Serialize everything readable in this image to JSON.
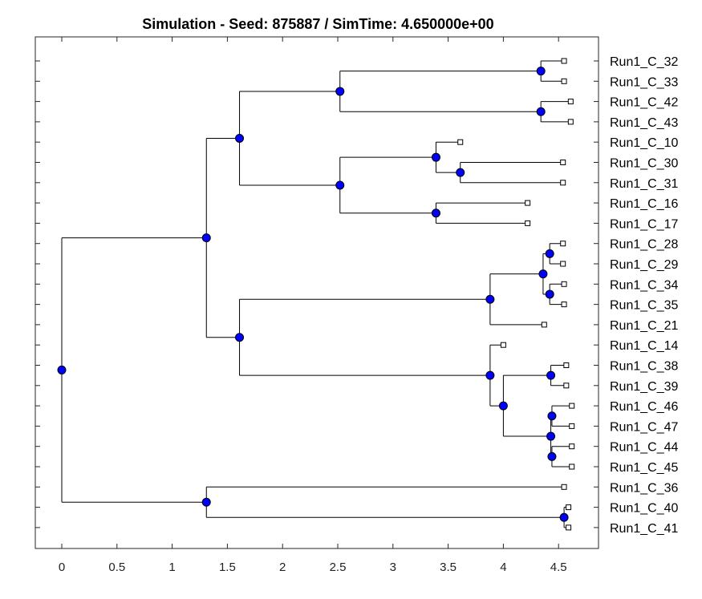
{
  "title": "Simulation - Seed: 875887 / SimTime: 4.650000e+00",
  "colors": {
    "internal_node": "#0000ff",
    "leaf_marker": "#ffffff",
    "edge": "#000000"
  },
  "x_axis": {
    "range": [
      -0.25,
      4.95
    ],
    "ticks": [
      0,
      0.5,
      1,
      1.5,
      2,
      2.5,
      3,
      3.5,
      4,
      4.5
    ],
    "tick_labels": [
      "0",
      "0.5",
      "1",
      "1.5",
      "2",
      "2.5",
      "3",
      "3.5",
      "4",
      "4.5"
    ]
  },
  "chart_data": {
    "type": "dendrogram",
    "title": "Simulation - Seed: 875887 / SimTime: 4.650000e+00",
    "leaf_order": [
      "Run1_C_32",
      "Run1_C_33",
      "Run1_C_42",
      "Run1_C_43",
      "Run1_C_10",
      "Run1_C_30",
      "Run1_C_31",
      "Run1_C_16",
      "Run1_C_17",
      "Run1_C_28",
      "Run1_C_29",
      "Run1_C_34",
      "Run1_C_35",
      "Run1_C_21",
      "Run1_C_14",
      "Run1_C_38",
      "Run1_C_39",
      "Run1_C_46",
      "Run1_C_47",
      "Run1_C_44",
      "Run1_C_45",
      "Run1_C_36",
      "Run1_C_40",
      "Run1_C_41"
    ],
    "tree": {
      "x": 0,
      "children": [
        {
          "x": 1.31,
          "children": [
            {
              "x": 1.61,
              "children": [
                {
                  "x": 2.52,
                  "children": [
                    {
                      "x": 4.34,
                      "children": [
                        {
                          "name": "Run1_C_32",
                          "x": 4.55
                        },
                        {
                          "name": "Run1_C_33",
                          "x": 4.55
                        }
                      ]
                    },
                    {
                      "x": 4.34,
                      "children": [
                        {
                          "name": "Run1_C_42",
                          "x": 4.61
                        },
                        {
                          "name": "Run1_C_43",
                          "x": 4.61
                        }
                      ]
                    }
                  ]
                },
                {
                  "x": 2.52,
                  "children": [
                    {
                      "x": 3.39,
                      "children": [
                        {
                          "name": "Run1_C_10",
                          "x": 3.61
                        },
                        {
                          "x": 3.61,
                          "children": [
                            {
                              "name": "Run1_C_30",
                              "x": 4.54
                            },
                            {
                              "name": "Run1_C_31",
                              "x": 4.54
                            }
                          ]
                        }
                      ]
                    },
                    {
                      "x": 3.39,
                      "children": [
                        {
                          "name": "Run1_C_16",
                          "x": 4.22
                        },
                        {
                          "name": "Run1_C_17",
                          "x": 4.22
                        }
                      ]
                    }
                  ]
                }
              ]
            },
            {
              "x": 1.61,
              "children": [
                {
                  "x": 3.88,
                  "children": [
                    {
                      "x": 4.36,
                      "children": [
                        {
                          "x": 4.42,
                          "children": [
                            {
                              "name": "Run1_C_28",
                              "x": 4.54
                            },
                            {
                              "name": "Run1_C_29",
                              "x": 4.54
                            }
                          ]
                        },
                        {
                          "x": 4.42,
                          "children": [
                            {
                              "name": "Run1_C_34",
                              "x": 4.55
                            },
                            {
                              "name": "Run1_C_35",
                              "x": 4.55
                            }
                          ]
                        }
                      ]
                    },
                    {
                      "name": "Run1_C_21",
                      "x": 4.37
                    }
                  ]
                },
                {
                  "x": 3.88,
                  "children": [
                    {
                      "name": "Run1_C_14",
                      "x": 4.0
                    },
                    {
                      "x": 4.0,
                      "children": [
                        {
                          "x": 4.43,
                          "children": [
                            {
                              "name": "Run1_C_38",
                              "x": 4.57
                            },
                            {
                              "name": "Run1_C_39",
                              "x": 4.57
                            }
                          ]
                        },
                        {
                          "x": 4.43,
                          "children": [
                            {
                              "x": 4.44,
                              "children": [
                                {
                                  "name": "Run1_C_46",
                                  "x": 4.62
                                },
                                {
                                  "name": "Run1_C_47",
                                  "x": 4.62
                                }
                              ]
                            },
                            {
                              "x": 4.44,
                              "children": [
                                {
                                  "name": "Run1_C_44",
                                  "x": 4.62
                                },
                                {
                                  "name": "Run1_C_45",
                                  "x": 4.62
                                }
                              ]
                            }
                          ]
                        }
                      ]
                    }
                  ]
                }
              ]
            }
          ]
        },
        {
          "x": 1.31,
          "children": [
            {
              "name": "Run1_C_36",
              "x": 4.55
            },
            {
              "x": 4.55,
              "children": [
                {
                  "name": "Run1_C_40",
                  "x": 4.59
                },
                {
                  "name": "Run1_C_41",
                  "x": 4.59
                }
              ]
            }
          ]
        }
      ]
    }
  }
}
